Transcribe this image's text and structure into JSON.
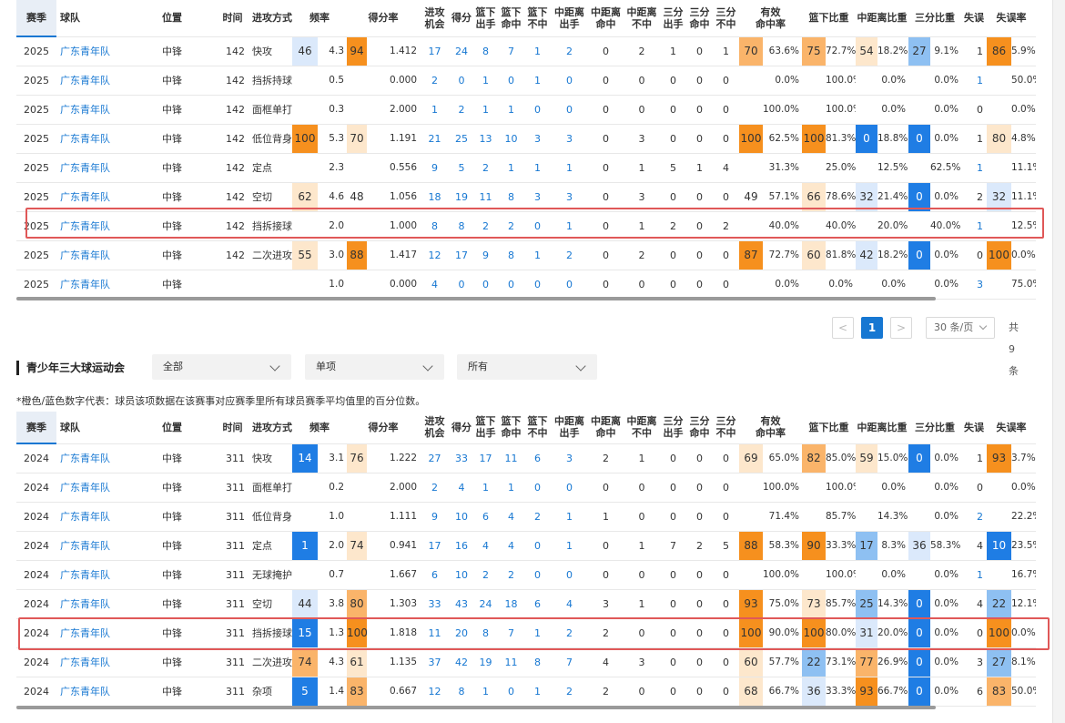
{
  "columns": [
    {
      "label": "赛季"
    },
    {
      "label": "球队"
    },
    {
      "label": "位置"
    },
    {
      "label": "时间"
    },
    {
      "label": "进攻方式"
    },
    {
      "label": "频率"
    },
    {
      "label": "得分率"
    },
    {
      "label": "进攻\n机会"
    },
    {
      "label": "得分"
    },
    {
      "label": "篮下\n出手"
    },
    {
      "label": "篮下\n命中"
    },
    {
      "label": "篮下\n不中"
    },
    {
      "label": "中距离\n出手"
    },
    {
      "label": "中距离\n命中"
    },
    {
      "label": "中距离\n不中"
    },
    {
      "label": "三分\n出手"
    },
    {
      "label": "三分\n命中"
    },
    {
      "label": "三分\n不中"
    },
    {
      "label": "有效\n命中率"
    },
    {
      "label": "篮下比重"
    },
    {
      "label": "中距离比重"
    },
    {
      "label": "三分比重"
    },
    {
      "label": "失误"
    },
    {
      "label": "失误率"
    }
  ],
  "colors": {
    "orange_strong": "#f6901e",
    "orange_mid": "#fab46a",
    "orange_light": "#fde7cc",
    "blue_strong": "#1f7de4",
    "blue_mid": "#8ec0f2",
    "blue_light": "#dbe9fb",
    "highlight_border": "#e05858",
    "link_blue": "#1677d2"
  },
  "table1": {
    "rows": [
      {
        "season": "2025",
        "team": "广东青年队",
        "pos": "中锋",
        "time": "142",
        "type": "快攻",
        "freq_p": "46",
        "freq_c": "bl",
        "freq": "4.3",
        "sr_p": "94",
        "sr_c": "os",
        "sr": "1.412",
        "opp": "17",
        "pts": "24",
        "bo": "8",
        "bm": "7",
        "bn": "1",
        "mo": "2",
        "mm": "0",
        "mn": "2",
        "to": "1",
        "tm": "0",
        "tn": "1",
        "efg_p": "70",
        "efg_c": "om",
        "efg": "63.6%",
        "bw_p": "75",
        "bw_c": "om",
        "bw": "72.7%",
        "mw_p": "54",
        "mw_c": "ol",
        "mw": "18.2%",
        "tw_p": "27",
        "tw_c": "bm",
        "tw": "9.1%",
        "tov": "1",
        "tovr_p": "86",
        "tovr_c": "os",
        "tovr": "5.9%"
      },
      {
        "season": "2025",
        "team": "广东青年队",
        "pos": "中锋",
        "time": "142",
        "type": "挡拆持球",
        "freq_p": "",
        "freq_c": "",
        "freq": "0.5",
        "sr_p": "",
        "sr_c": "",
        "sr": "0.000",
        "opp": "2",
        "pts": "0",
        "bo": "1",
        "bm": "0",
        "bn": "1",
        "mo": "0",
        "mm": "0",
        "mn": "0",
        "to": "0",
        "tm": "0",
        "tn": "0",
        "efg_p": "",
        "efg_c": "",
        "efg": "0.0%",
        "bw_p": "",
        "bw_c": "",
        "bw": "100.0%",
        "mw_p": "",
        "mw_c": "",
        "mw": "0.0%",
        "tw_p": "",
        "tw_c": "",
        "tw": "0.0%",
        "tov": "1",
        "tovr_p": "",
        "tovr_c": "",
        "tovr": "50.0%"
      },
      {
        "season": "2025",
        "team": "广东青年队",
        "pos": "中锋",
        "time": "142",
        "type": "面框单打",
        "freq_p": "",
        "freq_c": "",
        "freq": "0.3",
        "sr_p": "",
        "sr_c": "",
        "sr": "2.000",
        "opp": "1",
        "pts": "2",
        "bo": "1",
        "bm": "1",
        "bn": "0",
        "mo": "0",
        "mm": "0",
        "mn": "0",
        "to": "0",
        "tm": "0",
        "tn": "0",
        "efg_p": "",
        "efg_c": "",
        "efg": "100.0%",
        "bw_p": "",
        "bw_c": "",
        "bw": "100.0%",
        "mw_p": "",
        "mw_c": "",
        "mw": "0.0%",
        "tw_p": "",
        "tw_c": "",
        "tw": "0.0%",
        "tov": "0",
        "tovr_p": "",
        "tovr_c": "",
        "tovr": "0.0%"
      },
      {
        "season": "2025",
        "team": "广东青年队",
        "pos": "中锋",
        "time": "142",
        "type": "低位背身",
        "freq_p": "100",
        "freq_c": "os",
        "freq": "5.3",
        "sr_p": "70",
        "sr_c": "ol",
        "sr": "1.191",
        "opp": "21",
        "pts": "25",
        "bo": "13",
        "bm": "10",
        "bn": "3",
        "mo": "3",
        "mm": "0",
        "mn": "3",
        "to": "0",
        "tm": "0",
        "tn": "0",
        "efg_p": "100",
        "efg_c": "os",
        "efg": "62.5%",
        "bw_p": "100",
        "bw_c": "os",
        "bw": "81.3%",
        "mw_p": "0",
        "mw_c": "bs",
        "mw": "18.8%",
        "tw_p": "0",
        "tw_c": "bs",
        "tw": "0.0%",
        "tov": "1",
        "tovr_p": "80",
        "tovr_c": "ol",
        "tovr": "4.8%"
      },
      {
        "season": "2025",
        "team": "广东青年队",
        "pos": "中锋",
        "time": "142",
        "type": "定点",
        "freq_p": "",
        "freq_c": "",
        "freq": "2.3",
        "sr_p": "",
        "sr_c": "",
        "sr": "0.556",
        "opp": "9",
        "pts": "5",
        "bo": "2",
        "bm": "1",
        "bn": "1",
        "mo": "1",
        "mm": "0",
        "mn": "1",
        "to": "5",
        "tm": "1",
        "tn": "4",
        "efg_p": "",
        "efg_c": "",
        "efg": "31.3%",
        "bw_p": "",
        "bw_c": "",
        "bw": "25.0%",
        "mw_p": "",
        "mw_c": "",
        "mw": "12.5%",
        "tw_p": "",
        "tw_c": "",
        "tw": "62.5%",
        "tov": "1",
        "tovr_p": "",
        "tovr_c": "",
        "tovr": "11.1%"
      },
      {
        "season": "2025",
        "team": "广东青年队",
        "pos": "中锋",
        "time": "142",
        "type": "空切",
        "freq_p": "62",
        "freq_c": "ol",
        "freq": "4.6",
        "sr_p": "48",
        "sr_c": "",
        "sr": "1.056",
        "opp": "18",
        "pts": "19",
        "bo": "11",
        "bm": "8",
        "bn": "3",
        "mo": "3",
        "mm": "0",
        "mn": "3",
        "to": "0",
        "tm": "0",
        "tn": "0",
        "efg_p": "49",
        "efg_c": "",
        "efg": "57.1%",
        "bw_p": "66",
        "bw_c": "ol",
        "bw": "78.6%",
        "mw_p": "32",
        "mw_c": "bl",
        "mw": "21.4%",
        "tw_p": "0",
        "tw_c": "bs",
        "tw": "0.0%",
        "tov": "2",
        "tovr_p": "32",
        "tovr_c": "bl",
        "tovr": "11.1%"
      },
      {
        "season": "2025",
        "team": "广东青年队",
        "pos": "中锋",
        "time": "142",
        "type": "挡拆接球",
        "freq_p": "",
        "freq_c": "",
        "freq": "2.0",
        "sr_p": "",
        "sr_c": "",
        "sr": "1.000",
        "opp": "8",
        "pts": "8",
        "bo": "2",
        "bm": "2",
        "bn": "0",
        "mo": "1",
        "mm": "0",
        "mn": "1",
        "to": "2",
        "tm": "0",
        "tn": "2",
        "efg_p": "",
        "efg_c": "",
        "efg": "40.0%",
        "bw_p": "",
        "bw_c": "",
        "bw": "40.0%",
        "mw_p": "",
        "mw_c": "",
        "mw": "20.0%",
        "tw_p": "",
        "tw_c": "",
        "tw": "40.0%",
        "tov": "1",
        "tovr_p": "",
        "tovr_c": "",
        "tovr": "12.5%"
      },
      {
        "season": "2025",
        "team": "广东青年队",
        "pos": "中锋",
        "time": "142",
        "type": "二次进攻",
        "freq_p": "55",
        "freq_c": "ol",
        "freq": "3.0",
        "sr_p": "88",
        "sr_c": "os",
        "sr": "1.417",
        "opp": "12",
        "pts": "17",
        "bo": "9",
        "bm": "8",
        "bn": "1",
        "mo": "2",
        "mm": "0",
        "mn": "2",
        "to": "0",
        "tm": "0",
        "tn": "0",
        "efg_p": "87",
        "efg_c": "os",
        "efg": "72.7%",
        "bw_p": "60",
        "bw_c": "ol",
        "bw": "81.8%",
        "mw_p": "42",
        "mw_c": "bl",
        "mw": "18.2%",
        "tw_p": "0",
        "tw_c": "bs",
        "tw": "0.0%",
        "tov": "0",
        "tovr_p": "100",
        "tovr_c": "os",
        "tovr": "0.0%"
      },
      {
        "season": "2025",
        "team": "广东青年队",
        "pos": "中锋",
        "time": "",
        "type": "",
        "freq_p": "",
        "freq_c": "",
        "freq": "1.0",
        "sr_p": "",
        "sr_c": "",
        "sr": "0.000",
        "opp": "4",
        "pts": "0",
        "bo": "0",
        "bm": "0",
        "bn": "0",
        "mo": "0",
        "mm": "0",
        "mn": "0",
        "to": "0",
        "tm": "0",
        "tn": "0",
        "efg_p": "",
        "efg_c": "",
        "efg": "0.0%",
        "bw_p": "",
        "bw_c": "",
        "bw": "0.0%",
        "mw_p": "",
        "mw_c": "",
        "mw": "0.0%",
        "tw_p": "",
        "tw_c": "",
        "tw": "0.0%",
        "tov": "3",
        "tovr_p": "",
        "tovr_c": "",
        "tovr": "75.0%"
      }
    ],
    "highlight_row": 6
  },
  "pagination": {
    "prev": "<",
    "current": "1",
    "next": ">",
    "page_size": "30 条/页",
    "total": "共9条"
  },
  "section2": {
    "title": "青少年三大球运动会",
    "filters": [
      "全部",
      "单项",
      "所有"
    ],
    "note": "*橙色/蓝色数字代表：球员该项数据在该赛事对应赛季里所有球员赛季平均值里的百分位数。"
  },
  "table2": {
    "rows": [
      {
        "season": "2024",
        "team": "广东青年队",
        "pos": "中锋",
        "time": "311",
        "type": "快攻",
        "freq_p": "14",
        "freq_c": "bs",
        "freq": "3.1",
        "sr_p": "76",
        "sr_c": "ol",
        "sr": "1.222",
        "opp": "27",
        "pts": "33",
        "bo": "17",
        "bm": "11",
        "bn": "6",
        "mo": "3",
        "mm": "2",
        "mn": "1",
        "to": "0",
        "tm": "0",
        "tn": "0",
        "efg_p": "69",
        "efg_c": "ol",
        "efg": "65.0%",
        "bw_p": "82",
        "bw_c": "om",
        "bw": "85.0%",
        "mw_p": "59",
        "mw_c": "ol",
        "mw": "15.0%",
        "tw_p": "0",
        "tw_c": "bs",
        "tw": "0.0%",
        "tov": "1",
        "tovr_p": "93",
        "tovr_c": "os",
        "tovr": "3.7%"
      },
      {
        "season": "2024",
        "team": "广东青年队",
        "pos": "中锋",
        "time": "311",
        "type": "面框单打",
        "freq_p": "",
        "freq_c": "",
        "freq": "0.2",
        "sr_p": "",
        "sr_c": "",
        "sr": "2.000",
        "opp": "2",
        "pts": "4",
        "bo": "1",
        "bm": "1",
        "bn": "0",
        "mo": "0",
        "mm": "0",
        "mn": "0",
        "to": "0",
        "tm": "0",
        "tn": "0",
        "efg_p": "",
        "efg_c": "",
        "efg": "100.0%",
        "bw_p": "",
        "bw_c": "",
        "bw": "100.0%",
        "mw_p": "",
        "mw_c": "",
        "mw": "0.0%",
        "tw_p": "",
        "tw_c": "",
        "tw": "0.0%",
        "tov": "0",
        "tovr_p": "",
        "tovr_c": "",
        "tovr": "0.0%"
      },
      {
        "season": "2024",
        "team": "广东青年队",
        "pos": "中锋",
        "time": "311",
        "type": "低位背身",
        "freq_p": "",
        "freq_c": "",
        "freq": "1.0",
        "sr_p": "",
        "sr_c": "",
        "sr": "1.111",
        "opp": "9",
        "pts": "10",
        "bo": "6",
        "bm": "4",
        "bn": "2",
        "mo": "1",
        "mm": "1",
        "mn": "0",
        "to": "0",
        "tm": "0",
        "tn": "0",
        "efg_p": "",
        "efg_c": "",
        "efg": "71.4%",
        "bw_p": "",
        "bw_c": "",
        "bw": "85.7%",
        "mw_p": "",
        "mw_c": "",
        "mw": "14.3%",
        "tw_p": "",
        "tw_c": "",
        "tw": "0.0%",
        "tov": "2",
        "tovr_p": "",
        "tovr_c": "",
        "tovr": "22.2%"
      },
      {
        "season": "2024",
        "team": "广东青年队",
        "pos": "中锋",
        "time": "311",
        "type": "定点",
        "freq_p": "1",
        "freq_c": "bs",
        "freq": "2.0",
        "sr_p": "74",
        "sr_c": "ol",
        "sr": "0.941",
        "opp": "17",
        "pts": "16",
        "bo": "4",
        "bm": "4",
        "bn": "0",
        "mo": "1",
        "mm": "0",
        "mn": "1",
        "to": "7",
        "tm": "2",
        "tn": "5",
        "efg_p": "88",
        "efg_c": "os",
        "efg": "58.3%",
        "bw_p": "90",
        "bw_c": "os",
        "bw": "33.3%",
        "mw_p": "17",
        "mw_c": "bm",
        "mw": "8.3%",
        "tw_p": "36",
        "tw_c": "bl",
        "tw": "58.3%",
        "tov": "4",
        "tovr_p": "10",
        "tovr_c": "bs",
        "tovr": "23.5%"
      },
      {
        "season": "2024",
        "team": "广东青年队",
        "pos": "中锋",
        "time": "311",
        "type": "无球掩护",
        "freq_p": "",
        "freq_c": "",
        "freq": "0.7",
        "sr_p": "",
        "sr_c": "",
        "sr": "1.667",
        "opp": "6",
        "pts": "10",
        "bo": "2",
        "bm": "2",
        "bn": "0",
        "mo": "0",
        "mm": "0",
        "mn": "0",
        "to": "0",
        "tm": "0",
        "tn": "0",
        "efg_p": "",
        "efg_c": "",
        "efg": "100.0%",
        "bw_p": "",
        "bw_c": "",
        "bw": "100.0%",
        "mw_p": "",
        "mw_c": "",
        "mw": "0.0%",
        "tw_p": "",
        "tw_c": "",
        "tw": "0.0%",
        "tov": "1",
        "tovr_p": "",
        "tovr_c": "",
        "tovr": "16.7%"
      },
      {
        "season": "2024",
        "team": "广东青年队",
        "pos": "中锋",
        "time": "311",
        "type": "空切",
        "freq_p": "44",
        "freq_c": "bl",
        "freq": "3.8",
        "sr_p": "80",
        "sr_c": "om",
        "sr": "1.303",
        "opp": "33",
        "pts": "43",
        "bo": "24",
        "bm": "18",
        "bn": "6",
        "mo": "4",
        "mm": "3",
        "mn": "1",
        "to": "0",
        "tm": "0",
        "tn": "0",
        "efg_p": "93",
        "efg_c": "os",
        "efg": "75.0%",
        "bw_p": "73",
        "bw_c": "ol",
        "bw": "85.7%",
        "mw_p": "25",
        "mw_c": "bm",
        "mw": "14.3%",
        "tw_p": "0",
        "tw_c": "bs",
        "tw": "0.0%",
        "tov": "4",
        "tovr_p": "22",
        "tovr_c": "bm",
        "tovr": "12.1%"
      },
      {
        "season": "2024",
        "team": "广东青年队",
        "pos": "中锋",
        "time": "311",
        "type": "挡拆接球",
        "freq_p": "15",
        "freq_c": "bs",
        "freq": "1.3",
        "sr_p": "100",
        "sr_c": "os",
        "sr": "1.818",
        "opp": "11",
        "pts": "20",
        "bo": "8",
        "bm": "7",
        "bn": "1",
        "mo": "2",
        "mm": "2",
        "mn": "0",
        "to": "0",
        "tm": "0",
        "tn": "0",
        "efg_p": "100",
        "efg_c": "os",
        "efg": "90.0%",
        "bw_p": "100",
        "bw_c": "os",
        "bw": "80.0%",
        "mw_p": "31",
        "mw_c": "bl",
        "mw": "20.0%",
        "tw_p": "0",
        "tw_c": "bs",
        "tw": "0.0%",
        "tov": "0",
        "tovr_p": "100",
        "tovr_c": "os",
        "tovr": "0.0%"
      },
      {
        "season": "2024",
        "team": "广东青年队",
        "pos": "中锋",
        "time": "311",
        "type": "二次进攻",
        "freq_p": "74",
        "freq_c": "om",
        "freq": "4.3",
        "sr_p": "61",
        "sr_c": "ol",
        "sr": "1.135",
        "opp": "37",
        "pts": "42",
        "bo": "19",
        "bm": "11",
        "bn": "8",
        "mo": "7",
        "mm": "4",
        "mn": "3",
        "to": "0",
        "tm": "0",
        "tn": "0",
        "efg_p": "60",
        "efg_c": "ol",
        "efg": "57.7%",
        "bw_p": "22",
        "bw_c": "bm",
        "bw": "73.1%",
        "mw_p": "77",
        "mw_c": "om",
        "mw": "26.9%",
        "tw_p": "0",
        "tw_c": "bs",
        "tw": "0.0%",
        "tov": "3",
        "tovr_p": "27",
        "tovr_c": "bm",
        "tovr": "8.1%"
      },
      {
        "season": "2024",
        "team": "广东青年队",
        "pos": "中锋",
        "time": "311",
        "type": "杂项",
        "freq_p": "5",
        "freq_c": "bs",
        "freq": "1.4",
        "sr_p": "83",
        "sr_c": "om",
        "sr": "0.667",
        "opp": "12",
        "pts": "8",
        "bo": "1",
        "bm": "0",
        "bn": "1",
        "mo": "2",
        "mm": "2",
        "mn": "0",
        "to": "0",
        "tm": "0",
        "tn": "0",
        "efg_p": "68",
        "efg_c": "ol",
        "efg": "66.7%",
        "bw_p": "36",
        "bw_c": "bl",
        "bw": "33.3%",
        "mw_p": "93",
        "mw_c": "os",
        "mw": "66.7%",
        "tw_p": "0",
        "tw_c": "bs",
        "tw": "0.0%",
        "tov": "6",
        "tovr_p": "83",
        "tovr_c": "om",
        "tovr": "50.0%"
      }
    ],
    "highlight_row": 6
  }
}
